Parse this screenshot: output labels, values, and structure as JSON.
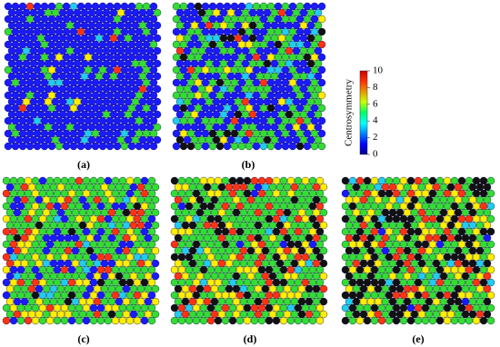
{
  "panels": [
    {
      "label": "(a)"
    },
    {
      "label": "(b)"
    },
    {
      "label": "(c)"
    },
    {
      "label": "(d)"
    },
    {
      "label": "(e)"
    }
  ],
  "colorbar": {
    "label": "Centrosymmetry",
    "range": [
      0,
      10
    ],
    "ticks": [
      0,
      2,
      4,
      6,
      8,
      10
    ]
  }
}
